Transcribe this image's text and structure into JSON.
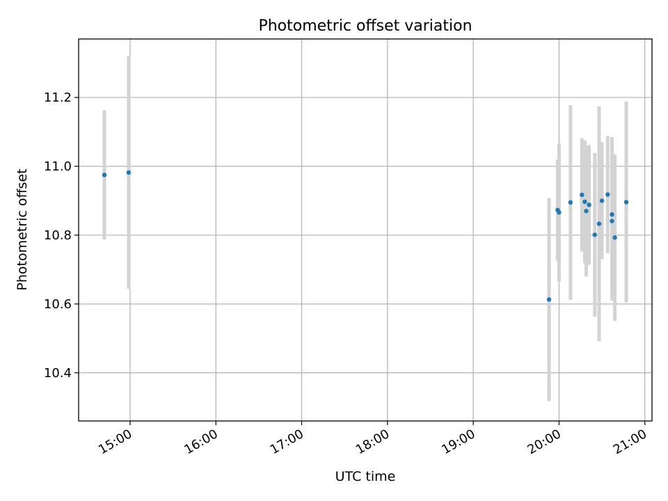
{
  "chart_data": {
    "type": "scatter",
    "title": "Photometric offset variation",
    "xlabel": "UTC time",
    "ylabel": "Photometric offset",
    "x_is_time": true,
    "xlim": [
      "14:24",
      "21:05"
    ],
    "ylim": [
      10.26,
      11.37
    ],
    "xticks": [
      "15:00",
      "16:00",
      "17:00",
      "18:00",
      "19:00",
      "20:00",
      "21:00"
    ],
    "yticks": [
      10.4,
      10.6,
      10.8,
      11.0,
      11.2
    ],
    "ytick_labels": [
      "10.4",
      "10.6",
      "10.8",
      "11.0",
      "11.2"
    ],
    "grid": true,
    "legend": "none",
    "colors": {
      "points": "#1f77b4",
      "errorbars": "#d3d3d3",
      "grid": "#b0b0b0",
      "axes": "#000000"
    },
    "series": [
      {
        "points": [
          {
            "x": "14:42",
            "y": 10.975,
            "err": 0.188
          },
          {
            "x": "14:59",
            "y": 10.982,
            "err": 0.338
          },
          {
            "x": "19:53",
            "y": 10.613,
            "err": 0.295
          },
          {
            "x": "19:59",
            "y": 10.873,
            "err": 0.147
          },
          {
            "x": "20:00",
            "y": 10.866,
            "err": 0.201
          },
          {
            "x": "20:08",
            "y": 10.895,
            "err": 0.283
          },
          {
            "x": "20:16",
            "y": 10.917,
            "err": 0.165
          },
          {
            "x": "20:18",
            "y": 10.897,
            "err": 0.178
          },
          {
            "x": "20:19",
            "y": 10.87,
            "err": 0.19
          },
          {
            "x": "20:21",
            "y": 10.888,
            "err": 0.174
          },
          {
            "x": "20:25",
            "y": 10.801,
            "err": 0.238
          },
          {
            "x": "20:28",
            "y": 10.833,
            "err": 0.341
          },
          {
            "x": "20:30",
            "y": 10.9,
            "err": 0.17
          },
          {
            "x": "20:34",
            "y": 10.918,
            "err": 0.17
          },
          {
            "x": "20:37",
            "y": 10.86,
            "err": 0.225
          },
          {
            "x": "20:37",
            "y": 10.841,
            "err": 0.231
          },
          {
            "x": "20:39",
            "y": 10.793,
            "err": 0.242
          },
          {
            "x": "20:47",
            "y": 10.896,
            "err": 0.292
          }
        ]
      }
    ]
  }
}
